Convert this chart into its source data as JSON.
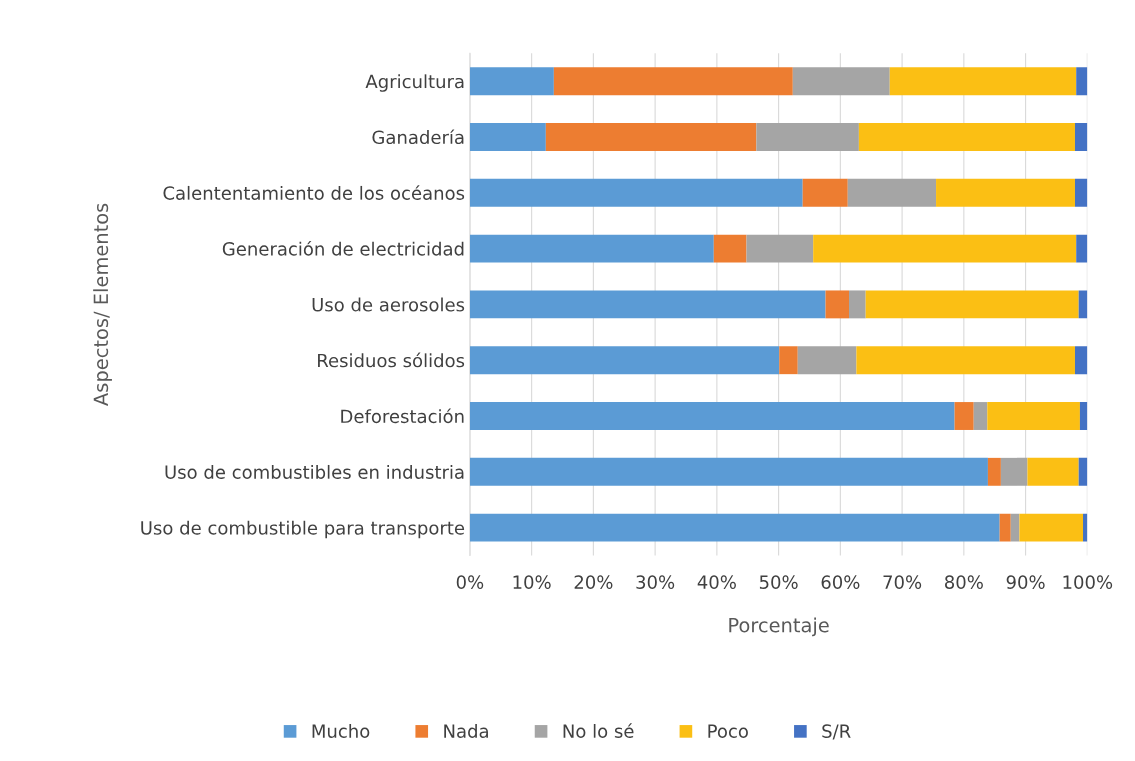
{
  "chart_data": {
    "type": "bar",
    "orientation": "horizontal",
    "stacked": true,
    "xlabel": "Porcentaje",
    "ylabel": "Aspectos/ Elementos",
    "categories": [
      "Agricultura",
      "Ganadería",
      "Calententamiento de los océanos",
      "Generación de electricidad",
      "Uso de aerosoles",
      "Residuos sólidos",
      "Deforestación",
      "Uso de combustibles en industria",
      "Uso de combustible para transporte"
    ],
    "series": [
      {
        "name": "Mucho",
        "color": "#5b9bd5",
        "values": [
          13.6,
          12.3,
          53.9,
          39.5,
          57.6,
          50.1,
          78.5,
          83.9,
          85.8
        ]
      },
      {
        "name": "Nada",
        "color": "#ed7d31",
        "values": [
          38.7,
          34.1,
          7.3,
          5.3,
          3.8,
          3.0,
          3.1,
          2.1,
          1.8
        ]
      },
      {
        "name": "No lo sé",
        "color": "#a5a5a5",
        "values": [
          15.7,
          16.6,
          14.3,
          10.8,
          2.7,
          9.5,
          2.2,
          4.3,
          1.4
        ]
      },
      {
        "name": "Poco",
        "color": "#fbbf14",
        "values": [
          30.2,
          35.0,
          22.5,
          42.6,
          34.5,
          35.4,
          15.0,
          8.3,
          10.3
        ]
      },
      {
        "name": "S/R",
        "color": "#4472c4",
        "values": [
          1.8,
          2.0,
          2.0,
          1.8,
          1.4,
          2.0,
          1.2,
          1.4,
          0.7
        ]
      }
    ],
    "xlim": [
      0,
      100
    ],
    "xticks": [
      {
        "value": 0,
        "label": "0%"
      },
      {
        "value": 10,
        "label": "10%"
      },
      {
        "value": 20,
        "label": "20%"
      },
      {
        "value": 30,
        "label": "30%"
      },
      {
        "value": 40,
        "label": "40%"
      },
      {
        "value": 50,
        "label": "50%"
      },
      {
        "value": 60,
        "label": "60%"
      },
      {
        "value": 70,
        "label": "70%"
      },
      {
        "value": 80,
        "label": "80%"
      },
      {
        "value": 90,
        "label": "90%"
      },
      {
        "value": 100,
        "label": "100%"
      }
    ],
    "grid": "x",
    "legend": "bottom"
  }
}
